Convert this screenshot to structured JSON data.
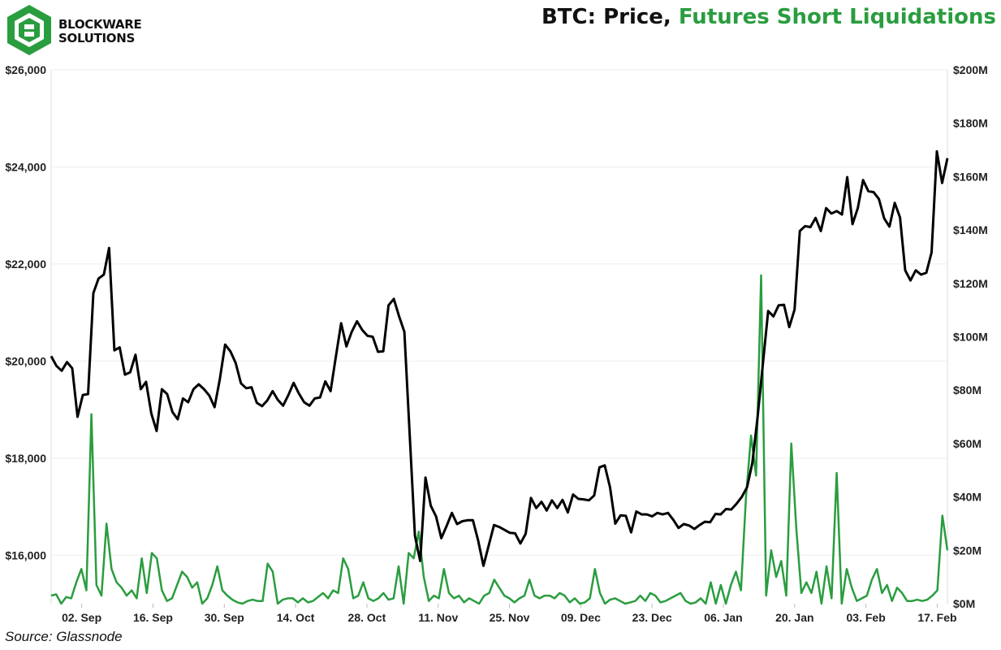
{
  "brand": {
    "line1": "BLOCKWARE",
    "line2": "SOLUTIONS",
    "logo_color": "#2a9d3f"
  },
  "title": {
    "part1": "BTC: Price, ",
    "part2": "Futures Short Liquidations",
    "part2_color": "#2a9d3f"
  },
  "source": "Source: Glassnode",
  "chart_data": {
    "type": "line",
    "title": "BTC: Price, Futures Short Liquidations",
    "x_start": "2022-08-27",
    "x_end": "2023-02-19",
    "x_ticks": [
      "02. Sep",
      "16. Sep",
      "30. Sep",
      "14. Oct",
      "28. Oct",
      "11. Nov",
      "25. Nov",
      "09. Dec",
      "23. Dec",
      "06. Jan",
      "20. Jan",
      "03. Feb",
      "17. Feb"
    ],
    "left_axis": {
      "ylim": [
        15000,
        26000
      ],
      "ticks": [
        "$16,000",
        "$18,000",
        "$20,000",
        "$22,000",
        "$24,000",
        "$26,000"
      ]
    },
    "right_axis": {
      "ylim": [
        0,
        200000000
      ],
      "ticks": [
        "$0M",
        "$20M",
        "$40M",
        "$60M",
        "$80M",
        "$100M",
        "$120M",
        "$140M",
        "$160M",
        "$180M",
        "$200M"
      ]
    },
    "grid": true,
    "series": [
      {
        "name": "Price",
        "axis": "left",
        "color": "#000000",
        "values": [
          20100,
          19900,
          19800,
          19980,
          19850,
          18850,
          19300,
          19320,
          21400,
          21700,
          21780,
          22330,
          20220,
          20280,
          19720,
          19770,
          20130,
          19420,
          19570,
          18920,
          18560,
          19420,
          19320,
          18950,
          18800,
          19230,
          19150,
          19420,
          19520,
          19420,
          19290,
          19050,
          19630,
          20340,
          20200,
          19960,
          19540,
          19440,
          19460,
          19140,
          19070,
          19190,
          19380,
          19200,
          19080,
          19300,
          19550,
          19330,
          19150,
          19080,
          19230,
          19250,
          19580,
          19380,
          20090,
          20780,
          20300,
          20600,
          20820,
          20640,
          20520,
          20500,
          20190,
          20200,
          21150,
          21280,
          20920,
          20600,
          18500,
          16400,
          15880,
          17600,
          17020,
          16800,
          16350,
          16600,
          16870,
          16640,
          16700,
          16720,
          16720,
          16300,
          15780,
          16200,
          16620,
          16580,
          16520,
          16460,
          16450,
          16240,
          16440,
          17180,
          16970,
          17100,
          16920,
          17130,
          16970,
          17140,
          16880,
          17250,
          17160,
          17150,
          17130,
          17230,
          17810,
          17850,
          17400,
          16650,
          16820,
          16810,
          16470,
          16900,
          16840,
          16840,
          16800,
          16870,
          16840,
          16870,
          16730,
          16560,
          16640,
          16610,
          16540,
          16620,
          16690,
          16680,
          16850,
          16840,
          16950,
          16940,
          17060,
          17200,
          17400,
          17900,
          18850,
          19940,
          21030,
          20920,
          21150,
          21160,
          20700,
          21060,
          22680,
          22780,
          22760,
          22950,
          22680,
          23150,
          23040,
          23090,
          23020,
          23790,
          22820,
          23150,
          23730,
          23500,
          23480,
          23340,
          22940,
          22770,
          23260,
          22960,
          21870,
          21660,
          21870,
          21780,
          21820,
          22240,
          24320,
          23670,
          24180
        ]
      },
      {
        "name": "Futures Short Liquidations",
        "axis": "right",
        "color": "#2a9d3f",
        "values": [
          3000000,
          3500000,
          0,
          2500000,
          2000000,
          8000000,
          13000000,
          5000000,
          71000000,
          7000000,
          3000000,
          30000000,
          13000000,
          8000000,
          6000000,
          3000000,
          5000000,
          2000000,
          17000000,
          4000000,
          19000000,
          17000000,
          5000000,
          1000000,
          2000000,
          7000000,
          12000000,
          10000000,
          6000000,
          8000000,
          0,
          2000000,
          7000000,
          14000000,
          5000000,
          3000000,
          1500000,
          500000,
          0,
          1000000,
          1500000,
          1000000,
          1000000,
          15000000,
          12000000,
          0,
          1500000,
          2000000,
          2000000,
          500000,
          2000000,
          500000,
          1000000,
          2500000,
          4000000,
          2000000,
          5000000,
          4000000,
          17000000,
          13000000,
          2000000,
          3000000,
          8000000,
          2000000,
          1000000,
          2000000,
          4000000,
          1500000,
          2000000,
          14000000,
          0,
          19000000,
          17000000,
          27000000,
          10000000,
          1000000,
          3000000,
          2000000,
          13000000,
          4000000,
          2000000,
          3000000,
          500000,
          2000000,
          1000000,
          0,
          3000000,
          4000000,
          9000000,
          6000000,
          3000000,
          2000000,
          500000,
          2000000,
          3000000,
          9000000,
          3000000,
          2000000,
          3000000,
          3000000,
          2000000,
          4000000,
          3000000,
          500000,
          2000000,
          0,
          500000,
          2000000,
          13000000,
          4000000,
          0,
          1500000,
          2000000,
          1000000,
          0,
          500000,
          1000000,
          3000000,
          1000000,
          4000000,
          3000000,
          500000,
          1000000,
          2000000,
          3000000,
          4000000,
          1000000,
          0,
          500000,
          2000000,
          0,
          8000000,
          0,
          7000000,
          0,
          7000000,
          12000000,
          5000000,
          40000000,
          63000000,
          48000000,
          123000000,
          3000000,
          20000000,
          10000000,
          16000000,
          3000000,
          60000000,
          28000000,
          4000000,
          8000000,
          4000000,
          12000000,
          0,
          14000000,
          2000000,
          49000000,
          0,
          13000000,
          6000000,
          1000000,
          2000000,
          3000000,
          9000000,
          13000000,
          4000000,
          7000000,
          1000000,
          6000000,
          4000000,
          1000000,
          1000000,
          1500000,
          1000000,
          1500000,
          3000000,
          5000000,
          33000000,
          20000000
        ]
      }
    ]
  }
}
